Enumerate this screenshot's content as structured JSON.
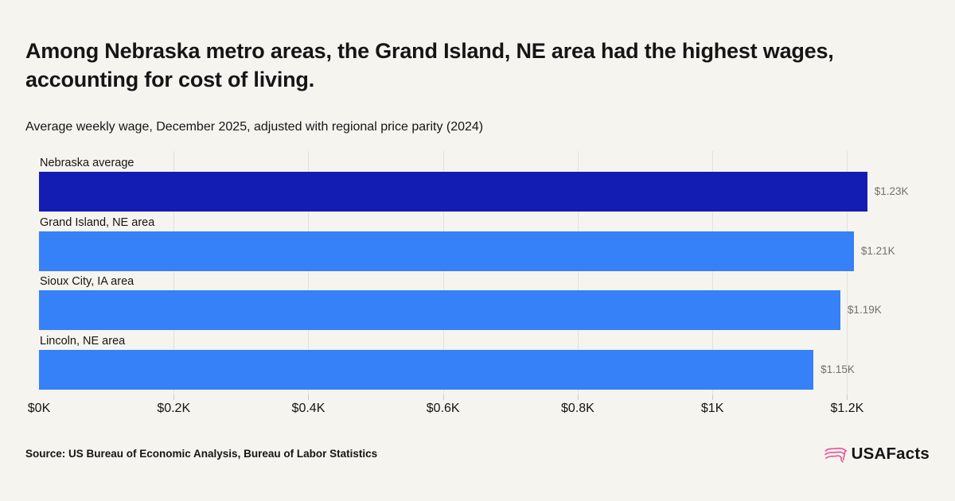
{
  "page": {
    "background": "#f5f4ef",
    "source": "Source: US Bureau of Economic Analysis, Bureau of Labor Statistics",
    "logo": {
      "text": "USAFacts",
      "icon": "usa-map-outline",
      "icon_color": "#eb5294",
      "text_color": "#161514"
    }
  },
  "chart_data": {
    "type": "bar",
    "orientation": "horizontal",
    "title": "Among Nebraska metro areas, the Grand Island, NE area had the highest wages, accounting for cost of living.",
    "subtitle": "Average weekly wage, December 2025, adjusted with regional price parity (2024)",
    "categories": [
      "Nebraska average",
      "Grand Island, NE area",
      "Sioux City, IA area",
      "Lincoln, NE area"
    ],
    "values": [
      1.23,
      1.21,
      1.19,
      1.15
    ],
    "value_labels": [
      "$1.23K",
      "$1.21K",
      "$1.19K",
      "$1.15K"
    ],
    "bar_colors": [
      "#131db4",
      "#3680f8",
      "#3680f8",
      "#3680f8"
    ],
    "unit": "K USD per week",
    "x_ticks": [
      {
        "label": "$0K",
        "value": 0
      },
      {
        "label": "$0.2K",
        "value": 0.2
      },
      {
        "label": "$0.4K",
        "value": 0.4
      },
      {
        "label": "$0.6K",
        "value": 0.6
      },
      {
        "label": "$0.8K",
        "value": 0.8
      },
      {
        "label": "$1K",
        "value": 1.0
      },
      {
        "label": "$1.2K",
        "value": 1.2
      }
    ],
    "xlim": [
      0,
      1.3
    ],
    "grid": true,
    "legend": false,
    "gridline_color": "#e2e2dd",
    "value_label_color": "#73716e"
  }
}
